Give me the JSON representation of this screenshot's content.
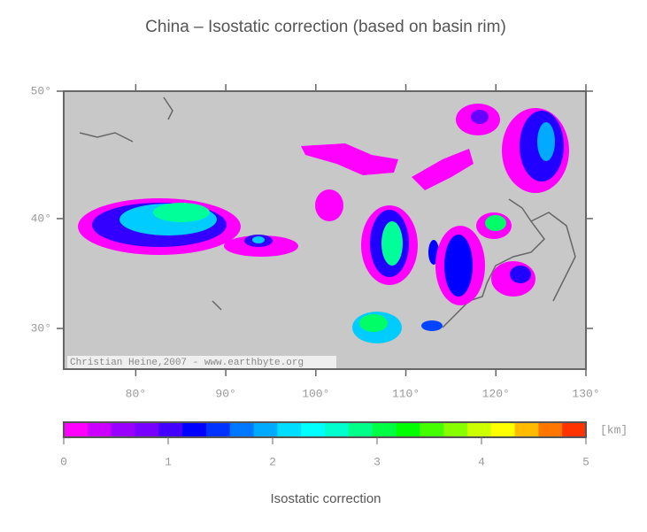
{
  "title": "China – Isostatic correction (based on basin rim)",
  "map": {
    "lon_range": [
      72,
      130
    ],
    "lat_range": [
      26,
      50
    ],
    "lon_ticks": [
      {
        "value": 80,
        "label": "80°"
      },
      {
        "value": 90,
        "label": "90°"
      },
      {
        "value": 100,
        "label": "100°"
      },
      {
        "value": 110,
        "label": "110°"
      },
      {
        "value": 120,
        "label": "120°"
      },
      {
        "value": 130,
        "label": "130°"
      }
    ],
    "lat_ticks": [
      {
        "value": 30,
        "label": "30°"
      },
      {
        "value": 40,
        "label": "40°"
      },
      {
        "value": 50,
        "label": "50°"
      }
    ],
    "credit": "Christian Heine,2007 - www.earthbyte.org",
    "background": "#c8c8c8"
  },
  "colorbar": {
    "range": [
      0,
      5
    ],
    "ticks": [
      0,
      1,
      2,
      3,
      4,
      5
    ],
    "unit": "[km]",
    "label": "Isostatic correction",
    "colors": [
      "#ff00ff",
      "#cc00ff",
      "#9900ff",
      "#7700ff",
      "#4400ff",
      "#0000ff",
      "#0033ff",
      "#0077ff",
      "#00aaff",
      "#00ddff",
      "#00ffff",
      "#00ffcc",
      "#00ff88",
      "#00ff44",
      "#00ff00",
      "#44ff00",
      "#88ff00",
      "#ccff00",
      "#ffff00",
      "#ffbb00",
      "#ff7700",
      "#ff3300"
    ]
  }
}
